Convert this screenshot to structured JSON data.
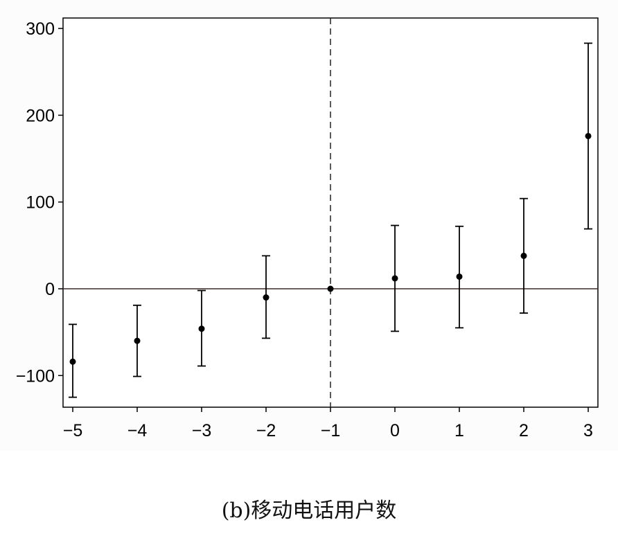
{
  "caption": "(b)移动电话用户数",
  "chart_data": {
    "type": "scatter",
    "title": "",
    "xlabel": "",
    "ylabel": "",
    "x": [
      -5,
      -4,
      -3,
      -2,
      -1,
      0,
      1,
      2,
      3
    ],
    "series": [
      {
        "values": [
          -84,
          -60,
          -46,
          -10,
          0,
          12,
          14,
          38,
          176
        ],
        "upper": [
          -41,
          -19,
          -2,
          38,
          0,
          73,
          72,
          104,
          283
        ],
        "lower": [
          -125,
          -101,
          -89,
          -57,
          0,
          -49,
          -45,
          -28,
          69
        ]
      }
    ],
    "xticks": [
      "−5",
      "−4",
      "−3",
      "−2",
      "−1",
      "0",
      "1",
      "2",
      "3"
    ],
    "yticks": [
      {
        "value": 300,
        "label": "300"
      },
      {
        "value": 200,
        "label": "200"
      },
      {
        "value": 100,
        "label": "100"
      },
      {
        "value": 0,
        "label": "0"
      },
      {
        "value": -100,
        "label": "−100"
      }
    ],
    "xlim": [
      -5.15,
      3.15
    ],
    "ylim": [
      -136,
      311
    ],
    "reference_lines": {
      "horizontal_y": 0,
      "vertical_dashed_x": -1
    },
    "grid": false,
    "colors": {
      "marks": "#000000",
      "zero_line": "#3a2a2a"
    }
  }
}
